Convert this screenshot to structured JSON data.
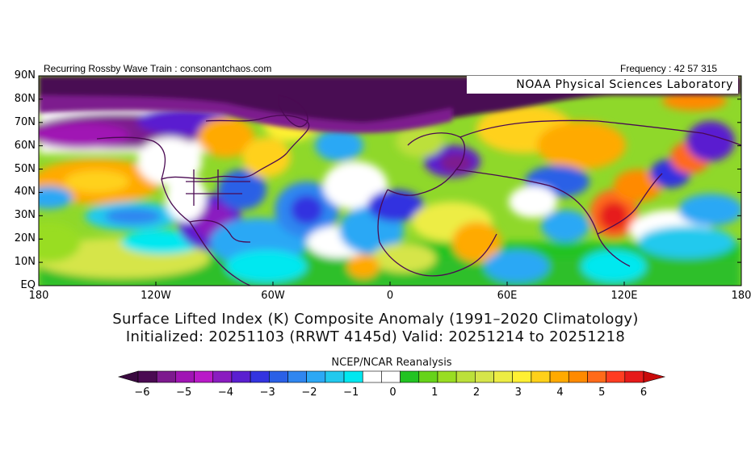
{
  "header": {
    "left": "Recurring Rossby Wave Train : consonantchaos.com",
    "right": "Frequency : 42 57 315"
  },
  "watermark": "NOAA Physical Sciences Laboratory",
  "map": {
    "lat_labels": [
      "90N",
      "80N",
      "70N",
      "60N",
      "50N",
      "40N",
      "30N",
      "20N",
      "10N",
      "EQ"
    ],
    "lon_labels": [
      "180",
      "120W",
      "60W",
      "0",
      "60E",
      "120E",
      "180"
    ]
  },
  "titles": {
    "line1": "Surface Lifted Index (K) Composite Anomaly (1991–2020 Climatology)",
    "line2": "Initialized: 20251103 (RRWT 4145d) Valid: 20251214 to 20251218"
  },
  "colorbar": {
    "title": "NCEP/NCAR Reanalysis",
    "tick_labels": [
      "−6",
      "−5",
      "−4",
      "−3",
      "−2",
      "−1",
      "0",
      "1",
      "2",
      "3",
      "4",
      "5",
      "6"
    ],
    "colors": [
      "#4a0a52",
      "#7d1a8e",
      "#a015b4",
      "#b91ac8",
      "#8a1cc0",
      "#5a1fd0",
      "#3333e0",
      "#2a60e6",
      "#2f86f0",
      "#2ca8f5",
      "#22c9ee",
      "#00e8f0",
      "#ffffff",
      "#ffffff",
      "#22c322",
      "#66d31a",
      "#99dd22",
      "#bce03a",
      "#d6e54a",
      "#eded44",
      "#fff033",
      "#ffd11a",
      "#ffaa00",
      "#ff8a00",
      "#ff6a1a",
      "#ff3d22",
      "#e61a1a"
    ],
    "low_arrow_color": "#3a0a40",
    "high_arrow_color": "#c80a0a"
  }
}
